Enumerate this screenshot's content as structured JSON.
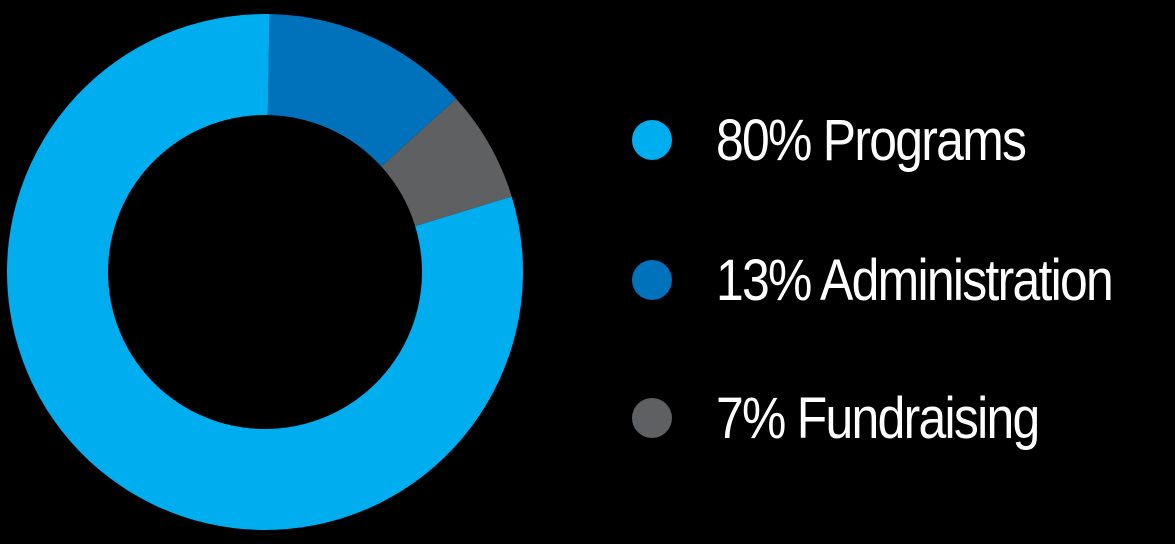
{
  "chart_data": {
    "type": "pie",
    "variant": "donut",
    "categories": [
      "Programs",
      "Administration",
      "Fundraising"
    ],
    "values": [
      80,
      13,
      7
    ],
    "unit": "%",
    "colors": [
      "#00aeef",
      "#0072bc",
      "#5f6062"
    ],
    "legend_placement": "right",
    "legend": [
      {
        "label": "80% Programs",
        "color": "#00aeef",
        "icon": "circle-swatch"
      },
      {
        "label": "13% Administration",
        "color": "#0072bc",
        "icon": "circle-swatch"
      },
      {
        "label": "7% Fundraising",
        "color": "#5f6062",
        "icon": "circle-swatch"
      }
    ]
  }
}
